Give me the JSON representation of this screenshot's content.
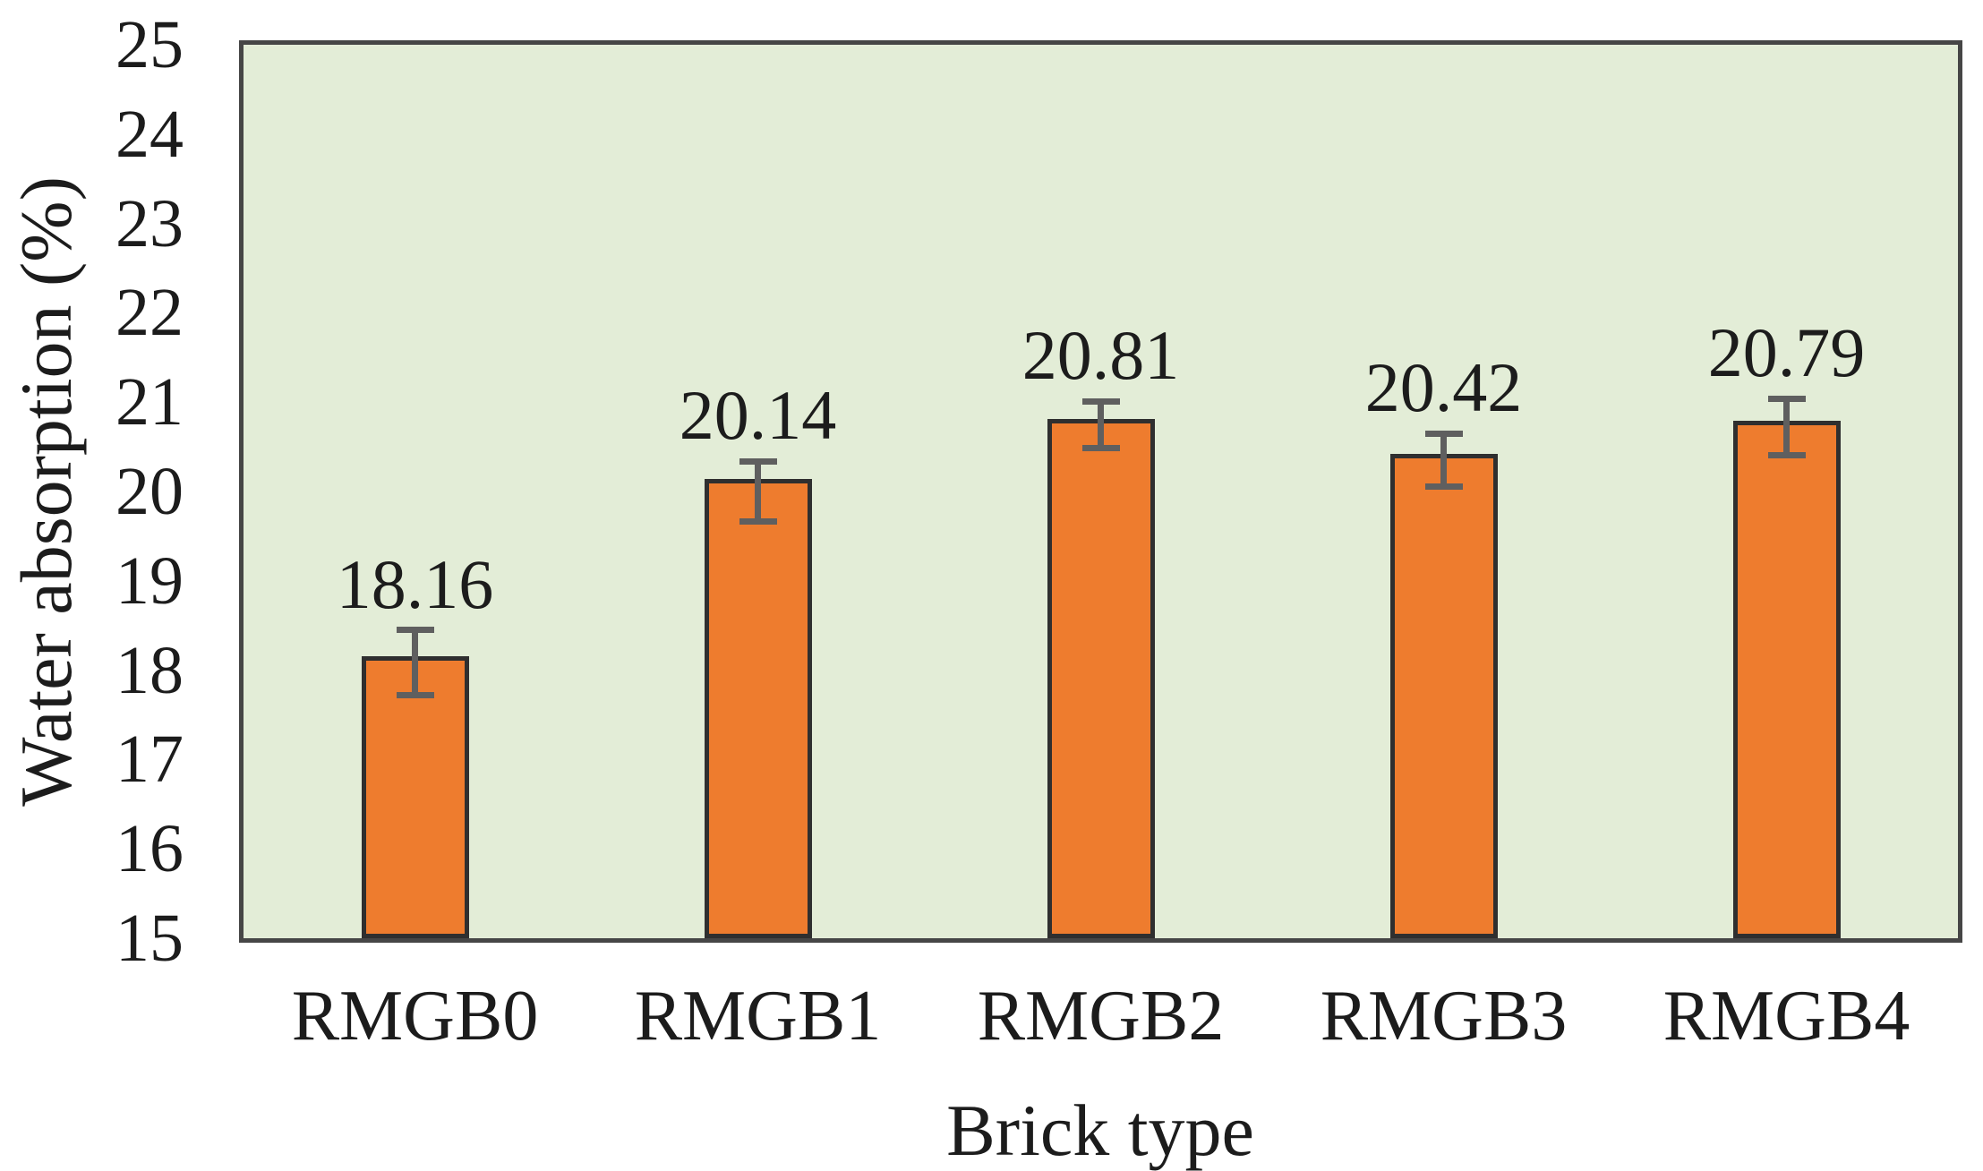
{
  "chart_data": {
    "type": "bar",
    "title": "",
    "xlabel": "Brick type",
    "ylabel": "Water absorption (%)",
    "categories": [
      "RMGB0",
      "RMGB1",
      "RMGB2",
      "RMGB3",
      "RMGB4"
    ],
    "values": [
      18.16,
      20.14,
      20.81,
      20.42,
      20.79
    ],
    "value_labels": [
      "18.16",
      "20.14",
      "20.81",
      "20.42",
      "20.79"
    ],
    "error_upper": [
      0.29,
      0.2,
      0.2,
      0.23,
      0.25
    ],
    "error_lower": [
      0.44,
      0.48,
      0.32,
      0.36,
      0.38
    ],
    "ylim": [
      15,
      25
    ],
    "yticks": [
      15,
      16,
      17,
      18,
      19,
      20,
      21,
      22,
      23,
      24,
      25
    ],
    "grid": false,
    "legend": null,
    "layout": {
      "legend_position": "none",
      "error_bars": "both-directions-gray-caps"
    },
    "colors": {
      "bar_fill": "#ee7c2e",
      "bar_border": "#2f2f2f",
      "plot_bg": "#e3edd7",
      "plot_border": "#464646",
      "error_bar": "#5f5f5f",
      "text": "#1c1c1c",
      "page_bg": "#ffffff"
    }
  }
}
